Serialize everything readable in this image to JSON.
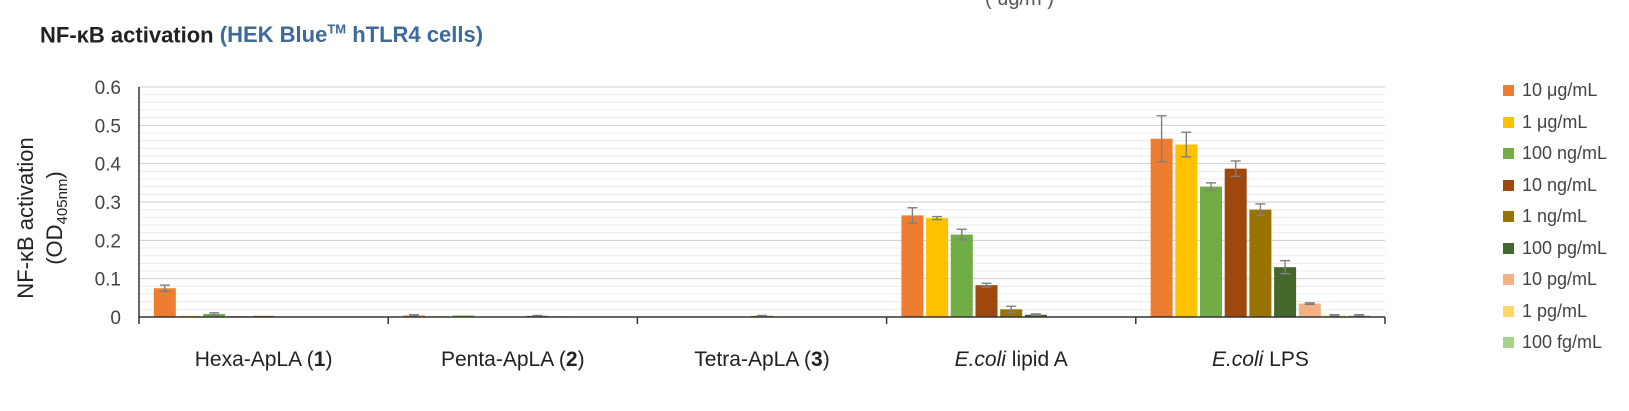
{
  "chart_data": {
    "type": "bar",
    "title": "NF-κB activation",
    "subtitle": "(HEK Blue™ hTLR4 cells)",
    "subtitle_parts": {
      "open": "(",
      "text": "HEK Blue",
      "sup": "TM",
      "text2": " hTLR4 cells",
      "close": ")"
    },
    "top_fragment": "(  ug/m  )",
    "ylabel_line1": "NF-κB activation",
    "ylabel_line2": {
      "open": "(OD",
      "sub": "405nm",
      "close": ")"
    },
    "ylim": [
      0,
      0.6
    ],
    "yticks": [
      "0",
      "0.1",
      "0.2",
      "0.3",
      "0.4",
      "0.5",
      "0.6"
    ],
    "grid": true,
    "legend_position": "right",
    "categories": [
      {
        "pre": "Hexa-ApLA (",
        "bold": "1",
        "post": ")"
      },
      {
        "pre": "Penta-ApLA (",
        "bold": "2",
        "post": ")"
      },
      {
        "pre": "Tetra-ApLA (",
        "bold": "3",
        "post": ")"
      },
      {
        "italic": "E.coli",
        "post": " lipid A"
      },
      {
        "italic": "E.coli",
        "post": " LPS"
      }
    ],
    "series": [
      {
        "name": "10 μg/mL",
        "color": "#ed7d31",
        "values": [
          0.075,
          0.004,
          0.001,
          0.265,
          0.465
        ],
        "errors": [
          0.008,
          0.002,
          0.0,
          0.02,
          0.06
        ]
      },
      {
        "name": "1 μg/mL",
        "color": "#ffc000",
        "values": [
          0.003,
          0.002,
          0.0,
          0.258,
          0.45
        ],
        "errors": [
          0.0,
          0.0,
          0.0,
          0.004,
          0.032
        ]
      },
      {
        "name": "100 ng/mL",
        "color": "#70ad47",
        "values": [
          0.008,
          0.004,
          0.0,
          0.215,
          0.34
        ],
        "errors": [
          0.003,
          0.0,
          0.0,
          0.014,
          0.01
        ]
      },
      {
        "name": "10 ng/mL",
        "color": "#9e480e",
        "values": [
          0.002,
          0.001,
          0.001,
          0.083,
          0.387
        ],
        "errors": [
          0.0,
          0.0,
          0.0,
          0.005,
          0.02
        ]
      },
      {
        "name": "1 ng/mL",
        "color": "#997300",
        "values": [
          0.003,
          0.001,
          0.003,
          0.02,
          0.28
        ],
        "errors": [
          0.0,
          0.0,
          0.001,
          0.008,
          0.015
        ]
      },
      {
        "name": "100 pg/mL",
        "color": "#43682b",
        "values": [
          0.001,
          0.003,
          0.001,
          0.006,
          0.13
        ],
        "errors": [
          0.0,
          0.001,
          0.0,
          0.002,
          0.017
        ]
      },
      {
        "name": "10 pg/mL",
        "color": "#f4b183",
        "values": [
          0.001,
          0.002,
          0.0,
          0.001,
          0.035
        ],
        "errors": [
          0.0,
          0.0,
          0.0,
          0.0,
          0.002
        ]
      },
      {
        "name": "1 pg/mL",
        "color": "#ffd966",
        "values": [
          0.001,
          0.001,
          0.0,
          0.001,
          0.004
        ],
        "errors": [
          0.0,
          0.0,
          0.0,
          0.0,
          0.002
        ]
      },
      {
        "name": "100 fg/mL",
        "color": "#a9d18e",
        "values": [
          0.001,
          0.001,
          0.0,
          0.001,
          0.004
        ],
        "errors": [
          0.0,
          0.0,
          0.0,
          0.0,
          0.002
        ]
      }
    ]
  }
}
